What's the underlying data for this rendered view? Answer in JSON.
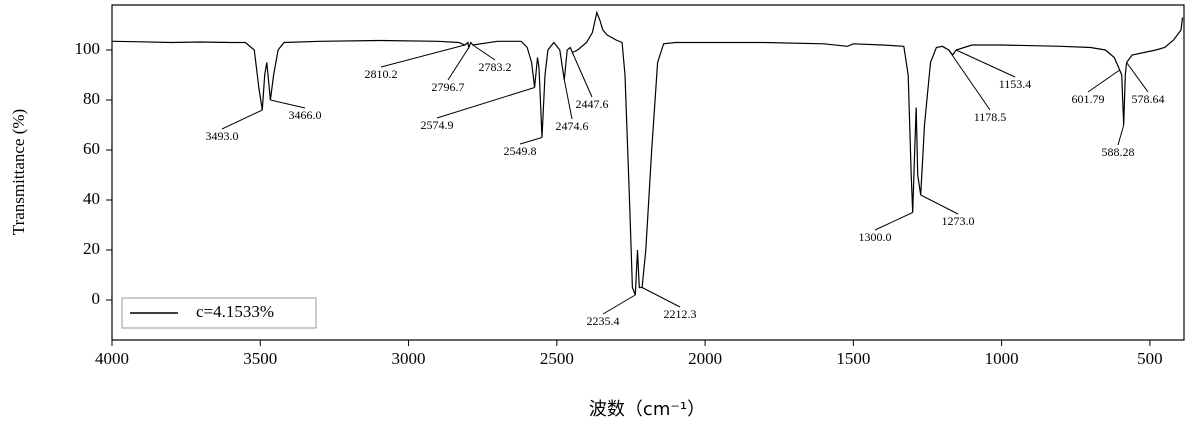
{
  "chart_data": {
    "type": "line",
    "xlabel": "波数（cm⁻¹）",
    "ylabel": "Transmittance (%)",
    "x": [
      4000,
      3900,
      3800,
      3700,
      3600,
      3550,
      3520,
      3505,
      3493,
      3485,
      3478,
      3470,
      3466,
      3455,
      3440,
      3420,
      3300,
      3100,
      2900,
      2830,
      2810.2,
      2800,
      2796.7,
      2790,
      2783.2,
      2700,
      2620,
      2600,
      2585,
      2574.9,
      2565,
      2560,
      2549.8,
      2540,
      2530,
      2510,
      2490,
      2474.6,
      2465,
      2455,
      2447.6,
      2430,
      2400,
      2380,
      2365,
      2355,
      2345,
      2330,
      2300,
      2280,
      2270,
      2255,
      2245,
      2235.4,
      2228,
      2222,
      2212.3,
      2200,
      2180,
      2160,
      2140,
      2100,
      1800,
      1600,
      1520,
      1500,
      1400,
      1330,
      1315,
      1305,
      1300,
      1293,
      1288,
      1283,
      1273,
      1260,
      1240,
      1220,
      1200,
      1178.5,
      1165,
      1153.4,
      1100,
      1000,
      800,
      700,
      650,
      620,
      601.79,
      595,
      588.28,
      583,
      578.64,
      560,
      520,
      480,
      450,
      420,
      395,
      390
    ],
    "series": [
      {
        "name": "c=4.1533%",
        "color": "#000000",
        "values": [
          103.5,
          103.3,
          103,
          103.2,
          103,
          103,
          100,
          85,
          76,
          90,
          95,
          85,
          80,
          90,
          100,
          103,
          103.5,
          103.8,
          103.5,
          103,
          102,
          103,
          101,
          103,
          102,
          103.5,
          103.5,
          101,
          95,
          85,
          97,
          93,
          65,
          90,
          100,
          103,
          100,
          88,
          100,
          101,
          99,
          100,
          103,
          107,
          115,
          112,
          108,
          106,
          104,
          103,
          90,
          40,
          5,
          2,
          20,
          5,
          5,
          20,
          60,
          95,
          102.5,
          103,
          103,
          102.5,
          101.5,
          102.5,
          102,
          101.5,
          90,
          50,
          35,
          60,
          77,
          50,
          42,
          70,
          95,
          101,
          101.5,
          100,
          98,
          100,
          102,
          102,
          101.5,
          101,
          100,
          97,
          92,
          90,
          70,
          90,
          95,
          98,
          99,
          100,
          101,
          104,
          108,
          113
        ]
      }
    ],
    "annotations": [
      {
        "label": "3493.0",
        "x": 3493,
        "y": 76
      },
      {
        "label": "3466.0",
        "x": 3466,
        "y": 80
      },
      {
        "label": "2810.2",
        "x": 2810.2,
        "y": 102
      },
      {
        "label": "2796.7",
        "x": 2796.7,
        "y": 101
      },
      {
        "label": "2783.2",
        "x": 2783.2,
        "y": 102
      },
      {
        "label": "2574.9",
        "x": 2574.9,
        "y": 85
      },
      {
        "label": "2549.8",
        "x": 2549.8,
        "y": 65
      },
      {
        "label": "2474.6",
        "x": 2474.6,
        "y": 88
      },
      {
        "label": "2447.6",
        "x": 2447.6,
        "y": 99
      },
      {
        "label": "2235.4",
        "x": 2235.4,
        "y": 2
      },
      {
        "label": "2212.3",
        "x": 2212.3,
        "y": 5
      },
      {
        "label": "1300.0",
        "x": 1300,
        "y": 35
      },
      {
        "label": "1273.0",
        "x": 1273,
        "y": 42
      },
      {
        "label": "1178.5",
        "x": 1178.5,
        "y": 100
      },
      {
        "label": "1153.4",
        "x": 1153.4,
        "y": 100
      },
      {
        "label": "601.79",
        "x": 601.79,
        "y": 92
      },
      {
        "label": "578.64",
        "x": 578.64,
        "y": 95
      },
      {
        "label": "588.28",
        "x": 588.28,
        "y": 70
      }
    ],
    "xlim": [
      4000,
      385
    ],
    "ylim": [
      -16,
      118
    ],
    "xticks": [
      4000,
      3500,
      3000,
      2500,
      2000,
      1500,
      1000,
      500
    ],
    "yticks": [
      0,
      20,
      40,
      60,
      80,
      100
    ],
    "legend": "lower left"
  }
}
